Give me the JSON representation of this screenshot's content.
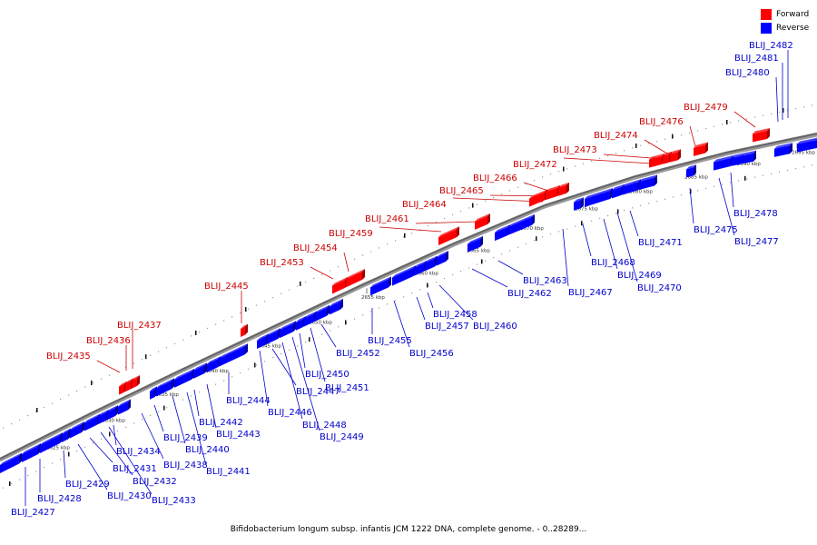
{
  "legend": {
    "forward": {
      "label": "Forward",
      "color": "#ff0000"
    },
    "reverse": {
      "label": "Reverse",
      "color": "#0000ff"
    }
  },
  "caption": "Bifidobacterium longum subsp. infantis JCM 1222 DNA, complete genome. - 0..28289...",
  "scale": {
    "unit": "kbp",
    "ticks": [
      "2625 kbp",
      "2630 kbp",
      "2635 kbp",
      "2640 kbp",
      "2645 kbp",
      "2650 kbp",
      "2655 kbp",
      "2660 kbp",
      "2665 kbp",
      "2670 kbp",
      "2675 kbp",
      "2680 kbp",
      "2685 kbp",
      "2690 kbp",
      "2695 kbp"
    ]
  },
  "genes": {
    "forward": [
      "BLIJ_2435",
      "BLIJ_2436",
      "BLIJ_2437",
      "BLIJ_2445",
      "BLIJ_2453",
      "BLIJ_2454",
      "BLIJ_2459",
      "BLIJ_2461",
      "BLIJ_2464",
      "BLIJ_2465",
      "BLIJ_2466",
      "BLIJ_2472",
      "BLIJ_2473",
      "BLIJ_2474",
      "BLIJ_2476",
      "BLIJ_2479"
    ],
    "reverse": [
      "BLIJ_2427",
      "BLIJ_2428",
      "BLIJ_2429",
      "BLIJ_2430",
      "BLIJ_2431",
      "BLIJ_2432",
      "BLIJ_2433",
      "BLIJ_2434",
      "BLIJ_2438",
      "BLIJ_2439",
      "BLIJ_2440",
      "BLIJ_2441",
      "BLIJ_2442",
      "BLIJ_2443",
      "BLIJ_2444",
      "BLIJ_2446",
      "BLIJ_2447",
      "BLIJ_2448",
      "BLIJ_2449",
      "BLIJ_2450",
      "BLIJ_2451",
      "BLIJ_2452",
      "BLIJ_2455",
      "BLIJ_2456",
      "BLIJ_2457",
      "BLIJ_2458",
      "BLIJ_2460",
      "BLIJ_2462",
      "BLIJ_2463",
      "BLIJ_2467",
      "BLIJ_2468",
      "BLIJ_2469",
      "BLIJ_2470",
      "BLIJ_2471",
      "BLIJ_2475",
      "BLIJ_2477",
      "BLIJ_2478",
      "BLIJ_2480",
      "BLIJ_2481",
      "BLIJ_2482"
    ]
  }
}
